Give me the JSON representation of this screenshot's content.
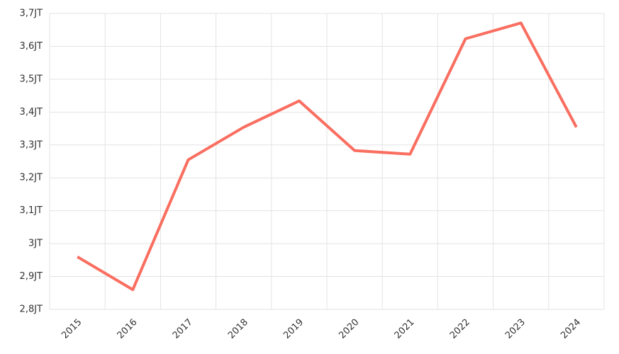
{
  "chart_data": {
    "type": "line",
    "categories": [
      "2015",
      "2016",
      "2017",
      "2018",
      "2019",
      "2020",
      "2021",
      "2022",
      "2023",
      "2024"
    ],
    "values": [
      2.96,
      2.86,
      3.255,
      3.354,
      3.434,
      3.283,
      3.272,
      3.623,
      3.671,
      3.354
    ],
    "color": "#fa6e60",
    "ylim": [
      2.8,
      3.7
    ],
    "yticks": [
      {
        "value": 2.8,
        "label": "2,8JT"
      },
      {
        "value": 2.9,
        "label": "2,9JT"
      },
      {
        "value": 3,
        "label": "3JT"
      },
      {
        "value": 3.1,
        "label": "3,1JT"
      },
      {
        "value": 3.2,
        "label": "3,2JT"
      },
      {
        "value": 3.3,
        "label": "3,3JT"
      },
      {
        "value": 3.4,
        "label": "3,4JT"
      },
      {
        "value": 3.5,
        "label": "3,5JT"
      },
      {
        "value": 3.6,
        "label": "3,6JT"
      },
      {
        "value": 3.7,
        "label": "3,7JT"
      }
    ],
    "grid": true
  }
}
